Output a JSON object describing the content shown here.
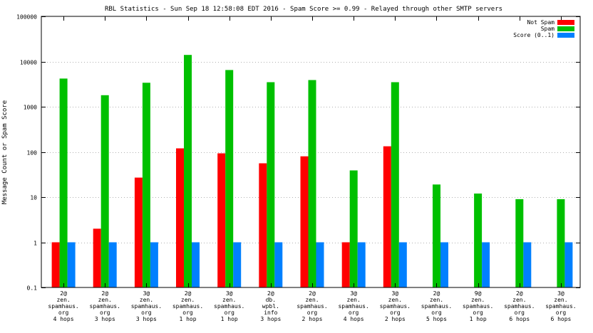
{
  "chart_data": {
    "type": "bar",
    "title": "RBL Statistics - Sun Sep 18 12:58:08 EDT 2016 - Spam Score >= 0.99 - Relayed through other SMTP servers",
    "ylabel": "Message Count or Spam Score",
    "xlabel": "",
    "yscale": "log",
    "ylim": [
      0.1,
      100000
    ],
    "yticks": [
      "0.1",
      "1",
      "10",
      "100",
      "1000",
      "10000",
      "100000"
    ],
    "ytick_values": [
      0.1,
      1,
      10,
      100,
      1000,
      10000,
      100000
    ],
    "grid": true,
    "legend_position": "top-right",
    "categories": [
      [
        "2@",
        "zen.",
        "spamhaus.",
        "org",
        "4 hops"
      ],
      [
        "2@",
        "zen.",
        "spamhaus.",
        "org",
        "3 hops"
      ],
      [
        "3@",
        "zen.",
        "spamhaus.",
        "org",
        "3 hops"
      ],
      [
        "2@",
        "zen.",
        "spamhaus.",
        "org",
        "1 hop"
      ],
      [
        "3@",
        "zen.",
        "spamhaus.",
        "org",
        "1 hop"
      ],
      [
        "2@",
        "db.",
        "wpbl.",
        "info",
        "3 hops"
      ],
      [
        "2@",
        "zen.",
        "spamhaus.",
        "org",
        "2 hops"
      ],
      [
        "3@",
        "zen.",
        "spamhaus.",
        "org",
        "4 hops"
      ],
      [
        "3@",
        "zen.",
        "spamhaus.",
        "org",
        "2 hops"
      ],
      [
        "2@",
        "zen.",
        "spamhaus.",
        "org",
        "5 hops"
      ],
      [
        "9@",
        "zen.",
        "spamhaus.",
        "org",
        "1 hop"
      ],
      [
        "2@",
        "zen.",
        "spamhaus.",
        "org",
        "6 hops"
      ],
      [
        "3@",
        "zen.",
        "spamhaus.",
        "org",
        "6 hops"
      ]
    ],
    "series": [
      {
        "name": "Not Spam",
        "color": "#ff0000",
        "values": [
          1,
          2,
          27,
          120,
          93,
          56,
          80,
          1,
          133,
          null,
          null,
          null,
          null
        ]
      },
      {
        "name": "Spam",
        "color": "#00c000",
        "values": [
          4200,
          1800,
          3400,
          14000,
          6500,
          3500,
          3900,
          39,
          3500,
          19,
          12,
          9,
          9
        ]
      },
      {
        "name": "Score (0..1)",
        "color": "#0080ff",
        "values": [
          1,
          1,
          1,
          1,
          1,
          1,
          1,
          1,
          1,
          1,
          1,
          1,
          1
        ]
      }
    ]
  }
}
